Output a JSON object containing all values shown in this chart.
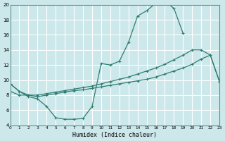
{
  "xlabel": "Humidex (Indice chaleur)",
  "xlim": [
    0,
    23
  ],
  "ylim": [
    4,
    20
  ],
  "yticks": [
    4,
    6,
    8,
    10,
    12,
    14,
    16,
    18,
    20
  ],
  "xticks": [
    0,
    1,
    2,
    3,
    4,
    5,
    6,
    7,
    8,
    9,
    10,
    11,
    12,
    13,
    14,
    15,
    16,
    17,
    18,
    19,
    20,
    21,
    22,
    23
  ],
  "bg_color": "#cce8ea",
  "line_color": "#2e7d72",
  "grid_color": "#ffffff",
  "top_line_x": [
    0,
    1,
    2,
    3,
    4,
    5,
    6,
    7,
    8,
    9,
    10,
    11,
    12,
    13,
    14,
    15,
    16,
    17,
    18,
    19
  ],
  "top_line_y": [
    9.5,
    8.5,
    7.8,
    7.5,
    6.5,
    5.0,
    4.8,
    4.8,
    4.9,
    6.5,
    12.2,
    12.0,
    12.5,
    15.0,
    18.5,
    19.2,
    20.2,
    20.5,
    19.5,
    16.2
  ],
  "mid_line_x": [
    0,
    1,
    2,
    3,
    4,
    5,
    6,
    7,
    8,
    9,
    10,
    11,
    12,
    13,
    14,
    15,
    16,
    17,
    18,
    19,
    20,
    21,
    22,
    23
  ],
  "mid_line_y": [
    8.5,
    8.0,
    8.0,
    8.0,
    8.2,
    8.4,
    8.6,
    8.8,
    9.0,
    9.2,
    9.5,
    9.8,
    10.1,
    10.4,
    10.8,
    11.2,
    11.6,
    12.1,
    12.7,
    13.3,
    14.0,
    14.0,
    13.3,
    9.8
  ],
  "bot_line_x": [
    0,
    1,
    2,
    3,
    4,
    5,
    6,
    7,
    8,
    9,
    10,
    11,
    12,
    13,
    14,
    15,
    16,
    17,
    18,
    19,
    20,
    21,
    22,
    23
  ],
  "bot_line_y": [
    9.5,
    8.5,
    8.0,
    7.8,
    8.0,
    8.2,
    8.4,
    8.6,
    8.7,
    8.9,
    9.1,
    9.3,
    9.5,
    9.7,
    9.9,
    10.1,
    10.4,
    10.8,
    11.2,
    11.6,
    12.1,
    12.8,
    13.3,
    9.8
  ]
}
